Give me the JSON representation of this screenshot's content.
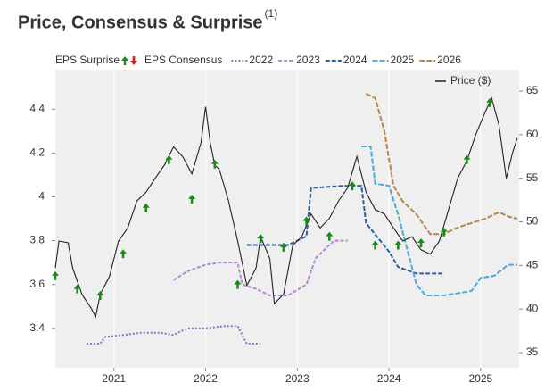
{
  "chart_data": {
    "type": "line",
    "title": "Price, Consensus & Surprise",
    "title_note": "(1)",
    "title_color": "#1e8a1e",
    "consensus_label": "EPS Consensus",
    "grid": true,
    "xlim": [
      2020.36,
      2025.42
    ],
    "xticks": [
      2021,
      2022,
      2023,
      2024,
      2025
    ],
    "ylim": [
      3.22,
      4.58
    ],
    "yticks": [
      3.4,
      3.6,
      3.8,
      4,
      4.2,
      4.4
    ],
    "y2lim": [
      33.26,
      67.46
    ],
    "y2ticks": [
      35,
      40,
      45,
      50,
      55,
      60,
      65
    ],
    "surprises": {
      "name": "EPS Surprise",
      "color": "#1a8a1a",
      "down_color": "#d62020",
      "x": [
        2020.36,
        2020.6,
        2020.85,
        2021.1,
        2021.35,
        2021.6,
        2021.85,
        2022.1,
        2022.35,
        2022.6,
        2022.85,
        2023.1,
        2023.35,
        2023.6,
        2023.85,
        2024.1,
        2024.35,
        2024.6,
        2024.85,
        2025.1
      ],
      "values": [
        3.64,
        3.58,
        3.55,
        3.74,
        3.95,
        4.17,
        3.99,
        4.15,
        3.6,
        3.81,
        3.77,
        3.89,
        3.82,
        4.05,
        3.78,
        3.78,
        3.79,
        3.84,
        4.17,
        4.43
      ]
    },
    "series": [
      {
        "name": "2022",
        "color": "#9a6cc2",
        "dash": "2,2",
        "x": [
          2020.7,
          2020.85,
          2020.9,
          2021.1,
          2021.3,
          2021.5,
          2021.65,
          2021.8,
          2022.0,
          2022.2,
          2022.35,
          2022.4,
          2022.45,
          2022.6
        ],
        "values": [
          3.33,
          3.33,
          3.36,
          3.37,
          3.38,
          3.38,
          3.37,
          3.4,
          3.4,
          3.41,
          3.41,
          3.37,
          3.33,
          3.33
        ]
      },
      {
        "name": "2023",
        "color": "#b48ad2",
        "dash": "4,2",
        "x": [
          2021.65,
          2021.8,
          2022.0,
          2022.15,
          2022.35,
          2022.4,
          2022.55,
          2022.7,
          2022.9,
          2023.1,
          2023.2,
          2023.4,
          2023.55
        ],
        "values": [
          3.62,
          3.66,
          3.69,
          3.7,
          3.7,
          3.6,
          3.58,
          3.55,
          3.55,
          3.6,
          3.72,
          3.8,
          3.8
        ]
      },
      {
        "name": "2024",
        "color": "#2d5fa0",
        "dash": "5,2",
        "x": [
          2022.45,
          2022.9,
          2023.1,
          2023.15,
          2023.5,
          2023.7,
          2023.75,
          2024.0,
          2024.1,
          2024.3,
          2024.6
        ],
        "values": [
          3.78,
          3.78,
          3.82,
          4.04,
          4.05,
          4.05,
          3.88,
          3.75,
          3.68,
          3.65,
          3.65
        ]
      },
      {
        "name": "2025",
        "color": "#4ea8d8",
        "dash": "6,2",
        "x": [
          2023.7,
          2023.8,
          2023.85,
          2024.0,
          2024.1,
          2024.3,
          2024.4,
          2024.6,
          2024.9,
          2025.0,
          2025.15,
          2025.3,
          2025.4
        ],
        "values": [
          4.23,
          4.23,
          4.06,
          4.05,
          3.92,
          3.6,
          3.55,
          3.55,
          3.57,
          3.63,
          3.64,
          3.69,
          3.69
        ]
      },
      {
        "name": "2026",
        "color": "#b8864a",
        "dash": "6,2",
        "x": [
          2023.75,
          2023.85,
          2023.95,
          2024.05,
          2024.15,
          2024.3,
          2024.45,
          2024.6,
          2024.75,
          2024.9,
          2025.05,
          2025.2,
          2025.3,
          2025.4
        ],
        "values": [
          4.47,
          4.45,
          4.3,
          4.05,
          3.98,
          3.92,
          3.83,
          3.83,
          3.86,
          3.88,
          3.9,
          3.93,
          3.91,
          3.9
        ]
      },
      {
        "name": "Price ($)",
        "color": "#222222",
        "axis": "y2",
        "x": [
          2020.36,
          2020.4,
          2020.5,
          2020.55,
          2020.65,
          2020.75,
          2020.8,
          2020.85,
          2020.95,
          2021.05,
          2021.15,
          2021.25,
          2021.35,
          2021.45,
          2021.55,
          2021.65,
          2021.75,
          2021.85,
          2021.95,
          2022.0,
          2022.05,
          2022.1,
          2022.15,
          2022.25,
          2022.35,
          2022.45,
          2022.55,
          2022.6,
          2022.7,
          2022.75,
          2022.85,
          2022.95,
          2023.05,
          2023.15,
          2023.25,
          2023.35,
          2023.45,
          2023.55,
          2023.65,
          2023.75,
          2023.85,
          2023.95,
          2024.05,
          2024.15,
          2024.25,
          2024.35,
          2024.45,
          2024.55,
          2024.65,
          2024.75,
          2024.85,
          2024.95,
          2025.05,
          2025.12,
          2025.2,
          2025.28,
          2025.35,
          2025.4
        ],
        "values": [
          44.7,
          47.8,
          47.6,
          44.7,
          41.7,
          40.1,
          39.1,
          41.7,
          43.7,
          47.8,
          49.3,
          52.4,
          53.4,
          55.0,
          56.5,
          58.6,
          57.5,
          55.5,
          59.1,
          63.2,
          59.1,
          56.5,
          56.0,
          52.4,
          47.8,
          42.7,
          44.7,
          48.3,
          45.8,
          40.6,
          41.7,
          47.3,
          48.3,
          50.9,
          49.3,
          50.4,
          52.4,
          53.9,
          57.5,
          53.4,
          51.4,
          50.9,
          49.3,
          47.8,
          48.3,
          46.8,
          46.3,
          47.8,
          51.4,
          55.0,
          57.0,
          60.1,
          62.6,
          64.2,
          61.1,
          55.0,
          58.0,
          59.6
        ]
      }
    ]
  }
}
